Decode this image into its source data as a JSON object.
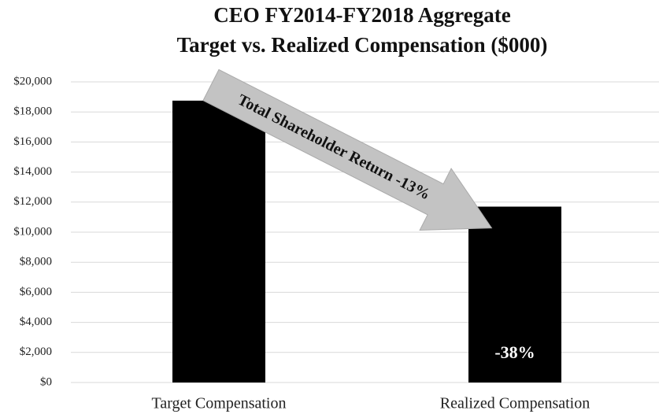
{
  "chart_data": {
    "type": "bar",
    "title": [
      "CEO FY2014-FY2018 Aggregate",
      "Target vs. Realized Compensation ($000)"
    ],
    "categories": [
      "Target Compensation",
      "Realized Compensation"
    ],
    "values": [
      18750,
      11700
    ],
    "color": "#000000",
    "ylim": [
      0,
      20000
    ],
    "yticks": [
      {
        "value": 0,
        "label": "$0"
      },
      {
        "value": 2000,
        "label": "$2,000"
      },
      {
        "value": 4000,
        "label": "$4,000"
      },
      {
        "value": 6000,
        "label": "$6,000"
      },
      {
        "value": 8000,
        "label": "$8,000"
      },
      {
        "value": 10000,
        "label": "$10,000"
      },
      {
        "value": 12000,
        "label": "$12,000"
      },
      {
        "value": 14000,
        "label": "$14,000"
      },
      {
        "value": 16000,
        "label": "$16,000"
      },
      {
        "value": 18000,
        "label": "$18,000"
      },
      {
        "value": 20000,
        "label": "$20,000"
      }
    ],
    "grid": true,
    "annotations": [
      "Total Shareholder Return -13%",
      "-38%"
    ]
  }
}
